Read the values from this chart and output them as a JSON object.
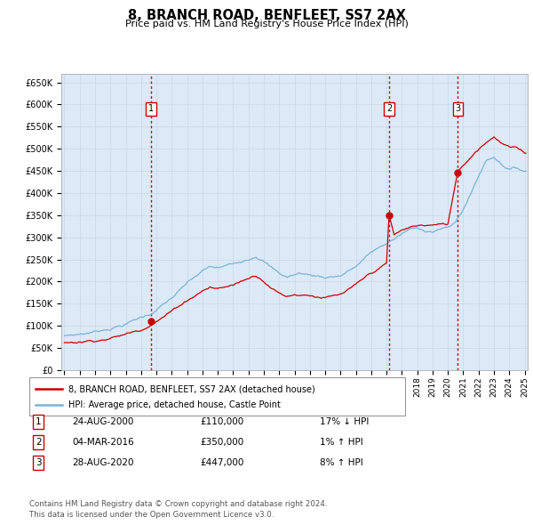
{
  "title": "8, BRANCH ROAD, BENFLEET, SS7 2AX",
  "subtitle": "Price paid vs. HM Land Registry's House Price Index (HPI)",
  "plot_bg_color": "#dce9f7",
  "ylim": [
    0,
    670000
  ],
  "yticks": [
    0,
    50000,
    100000,
    150000,
    200000,
    250000,
    300000,
    350000,
    400000,
    450000,
    500000,
    550000,
    600000,
    650000
  ],
  "ytick_labels": [
    "£0",
    "£50K",
    "£100K",
    "£150K",
    "£200K",
    "£250K",
    "£300K",
    "£350K",
    "£400K",
    "£450K",
    "£500K",
    "£550K",
    "£600K",
    "£650K"
  ],
  "sale_times": [
    2000.6389,
    2016.1667,
    2020.6528
  ],
  "sale_prices": [
    110000,
    350000,
    447000
  ],
  "sale_labels": [
    "1",
    "2",
    "3"
  ],
  "vline_color": "#cc0000",
  "hpi_line_color": "#7ab3d8",
  "price_line_color": "#cc0000",
  "legend_label_price": "8, BRANCH ROAD, BENFLEET, SS7 2AX (detached house)",
  "legend_label_hpi": "HPI: Average price, detached house, Castle Point",
  "table_data": [
    [
      "1",
      "24-AUG-2000",
      "£110,000",
      "17% ↓ HPI"
    ],
    [
      "2",
      "04-MAR-2016",
      "£350,000",
      "1% ↑ HPI"
    ],
    [
      "3",
      "28-AUG-2020",
      "£447,000",
      "8% ↑ HPI"
    ]
  ],
  "footer": "Contains HM Land Registry data © Crown copyright and database right 2024.\nThis data is licensed under the Open Government Licence v3.0.",
  "hpi_anchors_x": [
    1995.0,
    1996.0,
    1997.0,
    1998.0,
    1999.0,
    2000.0,
    2000.5,
    2001.0,
    2002.0,
    2003.0,
    2004.0,
    2004.5,
    2005.0,
    2006.0,
    2007.0,
    2007.5,
    2008.0,
    2008.5,
    2009.0,
    2009.5,
    2010.0,
    2010.5,
    2011.0,
    2012.0,
    2013.0,
    2014.0,
    2015.0,
    2016.0,
    2016.5,
    2017.0,
    2017.5,
    2018.0,
    2018.5,
    2019.0,
    2019.5,
    2020.0,
    2020.5,
    2021.0,
    2021.5,
    2022.0,
    2022.5,
    2023.0,
    2023.5,
    2024.0,
    2024.5,
    2025.0
  ],
  "hpi_anchors_y": [
    78000,
    82000,
    88000,
    97000,
    108000,
    122000,
    128000,
    140000,
    165000,
    195000,
    220000,
    228000,
    225000,
    232000,
    248000,
    258000,
    248000,
    232000,
    218000,
    210000,
    215000,
    218000,
    214000,
    210000,
    215000,
    235000,
    265000,
    285000,
    295000,
    305000,
    315000,
    315000,
    312000,
    312000,
    318000,
    318000,
    330000,
    360000,
    395000,
    435000,
    470000,
    480000,
    465000,
    455000,
    455000,
    450000
  ],
  "price_anchors_x": [
    1995.0,
    1996.0,
    1997.0,
    1998.0,
    1999.0,
    2000.0,
    2000.64,
    2001.0,
    2002.0,
    2003.0,
    2004.0,
    2004.5,
    2005.0,
    2006.0,
    2007.0,
    2007.5,
    2008.0,
    2008.5,
    2009.0,
    2009.5,
    2010.0,
    2011.0,
    2012.0,
    2013.0,
    2014.0,
    2015.0,
    2016.0,
    2016.17,
    2016.5,
    2017.0,
    2018.0,
    2019.0,
    2020.0,
    2020.65,
    2021.0,
    2022.0,
    2023.0,
    2023.5,
    2024.0,
    2024.5,
    2025.0
  ],
  "price_anchors_y": [
    62000,
    65000,
    70000,
    76000,
    84000,
    95000,
    110000,
    118000,
    140000,
    165000,
    188000,
    196000,
    192000,
    200000,
    215000,
    222000,
    212000,
    198000,
    185000,
    178000,
    183000,
    183000,
    178000,
    181000,
    198000,
    222000,
    242000,
    350000,
    305000,
    315000,
    325000,
    325000,
    325000,
    447000,
    460000,
    500000,
    530000,
    515000,
    505000,
    500000,
    490000
  ]
}
